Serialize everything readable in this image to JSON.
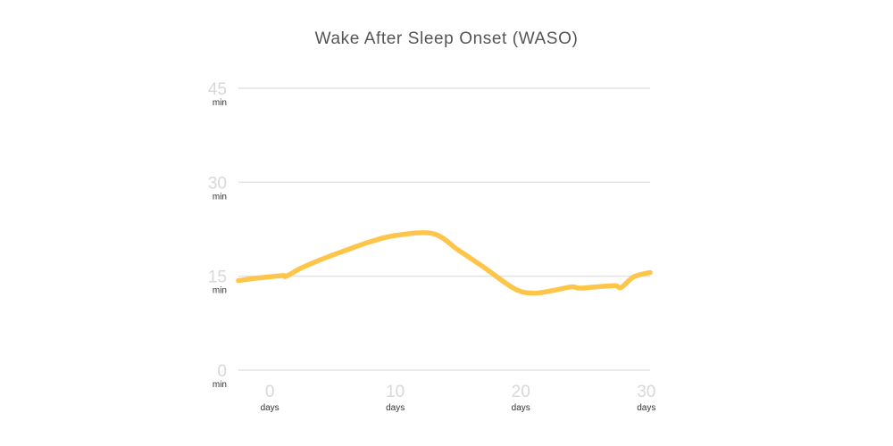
{
  "chart_data": {
    "type": "line",
    "title": "Wake After Sleep Onset (WASO)",
    "xlabel": "",
    "ylabel": "",
    "xlim": [
      -2.5,
      30.3
    ],
    "ylim": [
      0,
      45
    ],
    "x_ticks": [
      {
        "value": 0,
        "label": "0",
        "unit": "days"
      },
      {
        "value": 10,
        "label": "10",
        "unit": "days"
      },
      {
        "value": 20,
        "label": "20",
        "unit": "days"
      },
      {
        "value": 30,
        "label": "30",
        "unit": "days"
      }
    ],
    "y_ticks": [
      {
        "value": 0,
        "label": "0",
        "unit": "min"
      },
      {
        "value": 15,
        "label": "15",
        "unit": "min"
      },
      {
        "value": 30,
        "label": "30",
        "unit": "min"
      },
      {
        "value": 45,
        "label": "45",
        "unit": "min"
      }
    ],
    "grid": true,
    "legend": "none",
    "line_color": "#FDC54A",
    "series": [
      {
        "x": [
          -2.5,
          -1,
          1,
          1.3,
          2.5,
          4,
          6,
          8,
          10,
          13,
          15,
          17,
          19.5,
          21,
          22.5,
          24,
          24.7,
          26,
          27.5,
          28,
          29,
          30.3
        ],
        "y": [
          14.3,
          14.7,
          15.1,
          15.0,
          16.3,
          17.6,
          19.1,
          20.5,
          21.5,
          21.8,
          19.2,
          16.5,
          13.0,
          12.3,
          12.7,
          13.3,
          13.1,
          13.3,
          13.5,
          13.2,
          14.9,
          15.6
        ]
      }
    ]
  }
}
